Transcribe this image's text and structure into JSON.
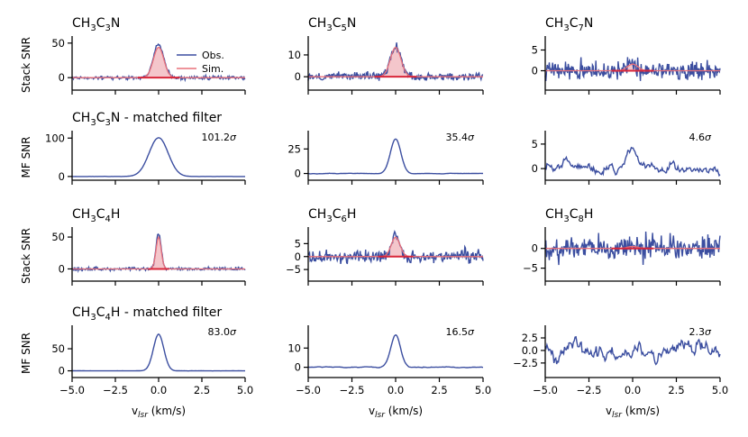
{
  "figure": {
    "xlabel": "v_lsr (km/s)",
    "xlabel_parts": {
      "main": "v",
      "sub": "lsr",
      "units": " (km/s)"
    },
    "row_ylabels": [
      "Stack SNR",
      "MF SNR",
      "Stack SNR",
      "MF SNR"
    ],
    "legend": [
      {
        "label": "Obs.",
        "color": "#3b4ea0"
      },
      {
        "label": "Sim.",
        "color": "#e8707a"
      }
    ],
    "colors": {
      "obs": "#3b4ea0",
      "sim": "#e8707a",
      "sim_fill": "#f4c6cb",
      "sim_base": "#d9263a"
    }
  },
  "chart_data": [
    {
      "id": "p00",
      "type": "line",
      "kind": "stack",
      "title": "CH3C3N",
      "title_parts": [
        "CH",
        "3",
        "C",
        "3",
        "N"
      ],
      "ylabel": "Stack SNR",
      "xlim": [
        -5,
        5
      ],
      "ylim": [
        -5,
        55
      ],
      "yticks": [
        0,
        50
      ],
      "xticks": [
        -5,
        -2.5,
        0,
        2.5,
        5
      ],
      "obs": {
        "noise": 1.2,
        "peak": 48,
        "width": 0.3,
        "seed": 11
      },
      "sim": {
        "peak": 44,
        "width": 0.3
      }
    },
    {
      "id": "p01",
      "type": "line",
      "kind": "stack",
      "title": "CH3C5N",
      "title_parts": [
        "CH",
        "3",
        "C",
        "5",
        "N"
      ],
      "ylabel": "",
      "xlim": [
        -5,
        5
      ],
      "ylim": [
        -2,
        17
      ],
      "yticks": [
        0,
        10
      ],
      "xticks": [
        -5,
        -2.5,
        0,
        2.5,
        5
      ],
      "obs": {
        "noise": 0.9,
        "peak": 14,
        "width": 0.3,
        "seed": 12
      },
      "sim": {
        "peak": 13.5,
        "width": 0.3
      }
    },
    {
      "id": "p02",
      "type": "line",
      "kind": "stack",
      "title": "CH3C7N",
      "title_parts": [
        "CH",
        "3",
        "C",
        "7",
        "N"
      ],
      "ylabel": "",
      "xlim": [
        -5,
        5
      ],
      "ylim": [
        -2.5,
        7.5
      ],
      "yticks": [
        0,
        5
      ],
      "xticks": [
        -5,
        -2.5,
        0,
        2.5,
        5
      ],
      "obs": {
        "noise": 1.1,
        "peak": 2.0,
        "width": 0.3,
        "seed": 13
      },
      "sim": {
        "peak": 1.6,
        "width": 0.3
      }
    },
    {
      "id": "p10",
      "type": "line",
      "kind": "mf",
      "title": "CH3C3N - matched filter",
      "title_parts": [
        "CH",
        "3",
        "C",
        "3",
        "N - matched filter"
      ],
      "ylabel": "MF SNR",
      "xlim": [
        -5,
        5
      ],
      "ylim": [
        -5,
        110
      ],
      "yticks": [
        0,
        100
      ],
      "xticks": [
        -5,
        -2.5,
        0,
        2.5,
        5
      ],
      "sigma": "101.2",
      "obs": {
        "noise": 0.4,
        "peak": 101.2,
        "width": 0.55,
        "seed": 21
      }
    },
    {
      "id": "p11",
      "type": "line",
      "kind": "mf",
      "title": "",
      "title_parts": [],
      "ylabel": "",
      "xlim": [
        -5,
        5
      ],
      "ylim": [
        -5,
        40
      ],
      "yticks": [
        0,
        25
      ],
      "xticks": [
        -5,
        -2.5,
        0,
        2.5,
        5
      ],
      "sigma": "35.4",
      "obs": {
        "noise": 0.6,
        "peak": 35.4,
        "width": 0.3,
        "seed": 22
      }
    },
    {
      "id": "p12",
      "type": "line",
      "kind": "mf",
      "title": "",
      "title_parts": [],
      "ylabel": "",
      "xlim": [
        -5,
        5
      ],
      "ylim": [
        -2,
        7
      ],
      "yticks": [
        0,
        5
      ],
      "xticks": [
        -5,
        -2.5,
        0,
        2.5,
        5
      ],
      "sigma": "4.6",
      "obs": {
        "noise": 1.1,
        "peak": 4.0,
        "width": 0.3,
        "seed": 23,
        "smooth": true
      }
    },
    {
      "id": "p20",
      "type": "line",
      "kind": "stack",
      "title": "CH3C4H",
      "title_parts": [
        "CH",
        "3",
        "C",
        "4",
        "H"
      ],
      "ylabel": "Stack SNR",
      "xlim": [
        -5,
        5
      ],
      "ylim": [
        -5,
        60
      ],
      "yticks": [
        0,
        50
      ],
      "xticks": [
        -5,
        -2.5,
        0,
        2.5,
        5
      ],
      "obs": {
        "noise": 1.2,
        "peak": 55,
        "width": 0.15,
        "seed": 31
      },
      "sim": {
        "peak": 50,
        "width": 0.15
      }
    },
    {
      "id": "p21",
      "type": "line",
      "kind": "stack",
      "title": "CH3C6H",
      "title_parts": [
        "CH",
        "3",
        "C",
        "6",
        "H"
      ],
      "ylabel": "",
      "xlim": [
        -5,
        5
      ],
      "ylim": [
        -6,
        10
      ],
      "yticks": [
        -5,
        0,
        5
      ],
      "xticks": [
        -5,
        -2.5,
        0,
        2.5,
        5
      ],
      "obs": {
        "noise": 1.1,
        "peak": 8.5,
        "width": 0.25,
        "seed": 32
      },
      "sim": {
        "peak": 7.5,
        "width": 0.25
      }
    },
    {
      "id": "p22",
      "type": "line",
      "kind": "stack",
      "title": "CH3C8H",
      "title_parts": [
        "CH",
        "3",
        "C",
        "8",
        "H"
      ],
      "ylabel": "",
      "xlim": [
        -5,
        5
      ],
      "ylim": [
        -6,
        4.5
      ],
      "yticks": [
        -5,
        0
      ],
      "xticks": [
        -5,
        -2.5,
        0,
        2.5,
        5
      ],
      "obs": {
        "noise": 1.4,
        "peak": 0.6,
        "width": 0.3,
        "seed": 33
      },
      "sim": {
        "peak": 0.5,
        "width": 0.3
      }
    },
    {
      "id": "p30",
      "type": "line",
      "kind": "mf",
      "title": "CH3C4H - matched filter",
      "title_parts": [
        "CH",
        "3",
        "C",
        "4",
        "H - matched filter"
      ],
      "ylabel": "MF SNR",
      "xlim": [
        -5,
        5
      ],
      "ylim": [
        -5,
        95
      ],
      "yticks": [
        0,
        50
      ],
      "xticks": [
        -5,
        -2.5,
        0,
        2.5,
        5
      ],
      "xticklabels": [
        "−5.0",
        "−2.5",
        "0.0",
        "2.5",
        "5.0"
      ],
      "sigma": "83.0",
      "obs": {
        "noise": 0.4,
        "peak": 83,
        "width": 0.3,
        "seed": 41
      }
    },
    {
      "id": "p31",
      "type": "line",
      "kind": "mf",
      "title": "",
      "title_parts": [],
      "ylabel": "",
      "xlim": [
        -5,
        5
      ],
      "ylim": [
        -3,
        20
      ],
      "yticks": [
        0,
        10
      ],
      "xticks": [
        -5,
        -2.5,
        0,
        2.5,
        5
      ],
      "xticklabels": [
        "−5.0",
        "−2.5",
        "0.0",
        "2.5",
        "5.0"
      ],
      "sigma": "16.5",
      "obs": {
        "noise": 0.6,
        "peak": 16.5,
        "width": 0.28,
        "seed": 42
      }
    },
    {
      "id": "p32",
      "type": "line",
      "kind": "mf",
      "title": "",
      "title_parts": [],
      "ylabel": "",
      "xlim": [
        -5,
        5
      ],
      "ylim": [
        -4.5,
        4.3
      ],
      "yticks": [
        -2.5,
        0,
        2.5
      ],
      "ytickfmt": 1,
      "xticks": [
        -5,
        -2.5,
        0,
        2.5,
        5
      ],
      "xticklabels": [
        "−5.0",
        "−2.5",
        "0.0",
        "2.5",
        "5.0"
      ],
      "sigma": "2.3",
      "obs": {
        "noise": 1.6,
        "peak": 0.8,
        "width": 0.3,
        "seed": 43,
        "smooth": true
      }
    }
  ]
}
